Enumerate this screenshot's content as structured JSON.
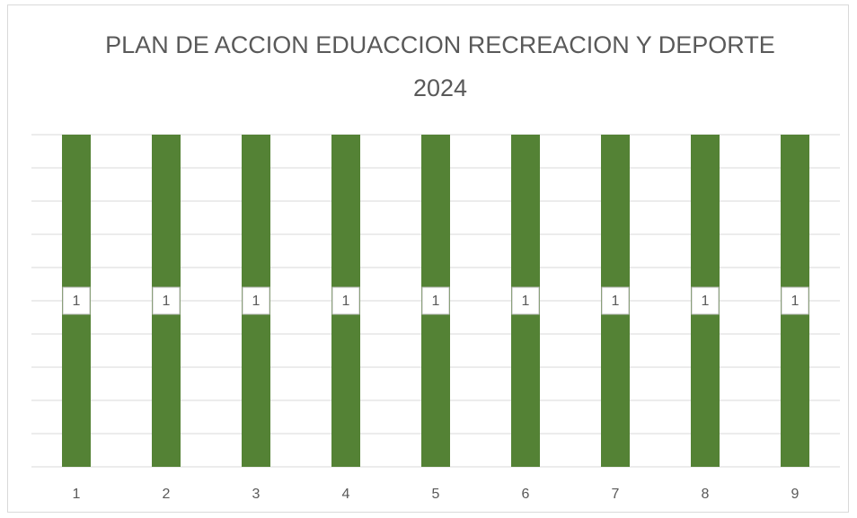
{
  "chart_data": {
    "type": "bar",
    "title": "PLAN DE ACCION EDUACCION RECREACION Y DEPORTE 2024",
    "categories": [
      "1",
      "2",
      "3",
      "4",
      "5",
      "6",
      "7",
      "8",
      "9"
    ],
    "values": [
      1,
      1,
      1,
      1,
      1,
      1,
      1,
      1,
      1
    ],
    "color": "#548235",
    "ylim": [
      0,
      1
    ],
    "yticks": [
      0,
      0.1,
      0.2,
      0.3,
      0.4,
      0.5,
      0.6,
      0.7,
      0.8,
      0.9,
      1
    ],
    "grid": true
  }
}
